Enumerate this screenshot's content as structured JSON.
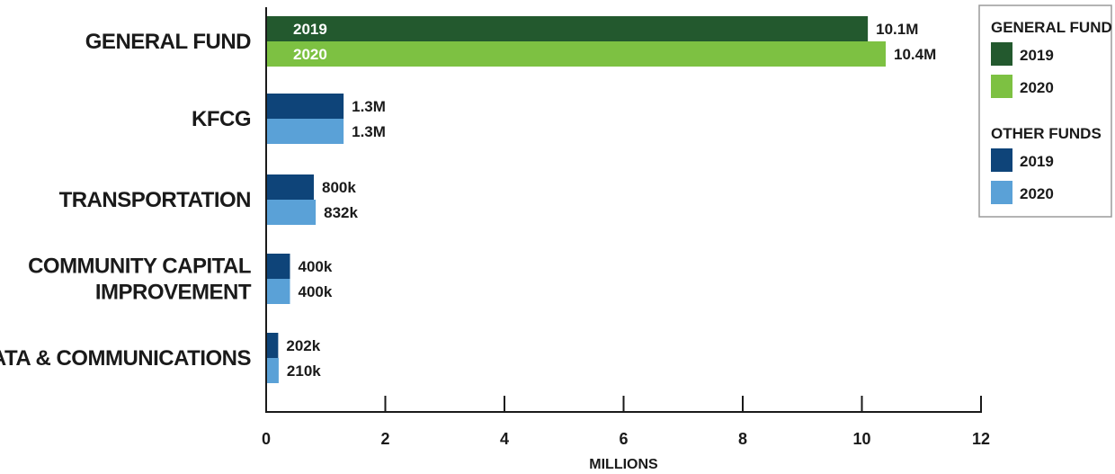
{
  "chart_data": {
    "type": "bar",
    "orientation": "horizontal",
    "categories": [
      [
        "GENERAL FUND"
      ],
      [
        "KFCG"
      ],
      [
        "TRANSPORTATION"
      ],
      [
        "COMMUNITY CAPITAL",
        "IMPROVEMENT"
      ],
      [
        "DATA & COMMUNICATIONS"
      ]
    ],
    "series": [
      {
        "name": "2019",
        "values": [
          10.1,
          1.3,
          0.8,
          0.4,
          0.202
        ],
        "labels": [
          "10.1M",
          "1.3M",
          "800k",
          "400k",
          "202k"
        ],
        "inbar_label": "2019",
        "colors": [
          "#23592e",
          "#0e4479",
          "#0e4479",
          "#0e4479",
          "#0e4479"
        ]
      },
      {
        "name": "2020",
        "values": [
          10.4,
          1.3,
          0.832,
          0.4,
          0.21
        ],
        "labels": [
          "10.4M",
          "1.3M",
          "832k",
          "400k",
          "210k"
        ],
        "inbar_label": "2020",
        "colors": [
          "#7dc142",
          "#5aa1d7",
          "#5aa1d7",
          "#5aa1d7",
          "#5aa1d7"
        ]
      }
    ],
    "xlim": [
      0,
      12
    ],
    "xticks": [
      0,
      2,
      4,
      6,
      8,
      10,
      12
    ],
    "xlabel": "MILLIONS",
    "ylabel": "",
    "title": "",
    "grid": false,
    "legend": {
      "placement": "top-right",
      "groups": [
        {
          "heading": "GENERAL FUND",
          "items": [
            {
              "label": "2019",
              "color": "#23592e"
            },
            {
              "label": "2020",
              "color": "#7dc142"
            }
          ]
        },
        {
          "heading": "OTHER FUNDS",
          "items": [
            {
              "label": "2019",
              "color": "#0e4479"
            },
            {
              "label": "2020",
              "color": "#5aa1d7"
            }
          ]
        }
      ]
    }
  }
}
